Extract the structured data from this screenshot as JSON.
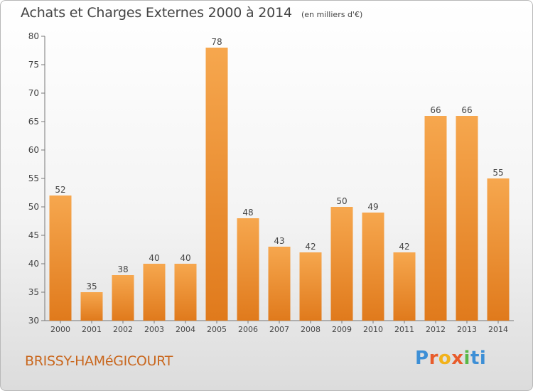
{
  "header": {
    "title": "Achats et Charges Externes 2000 à 2014",
    "subtitle": "(en milliers d'€)"
  },
  "footer": {
    "commune": "BRISSY-HAMéGICOURT",
    "logo": "Proxiti"
  },
  "colors": {
    "bar_light": "#f6a74e",
    "bar_dark": "#e07a1c",
    "text": "#444444",
    "commune": "#c9671e"
  },
  "chart_data": {
    "type": "bar",
    "categories": [
      "2000",
      "2001",
      "2002",
      "2003",
      "2004",
      "2005",
      "2006",
      "2007",
      "2008",
      "2009",
      "2010",
      "2011",
      "2012",
      "2013",
      "2014"
    ],
    "values": [
      52,
      35,
      38,
      40,
      40,
      78,
      48,
      43,
      42,
      50,
      49,
      42,
      66,
      66,
      55
    ],
    "ylim": [
      30,
      80
    ],
    "yticks": [
      30,
      35,
      40,
      45,
      50,
      55,
      60,
      65,
      70,
      75,
      80
    ],
    "grid": false,
    "data_labels": true
  }
}
